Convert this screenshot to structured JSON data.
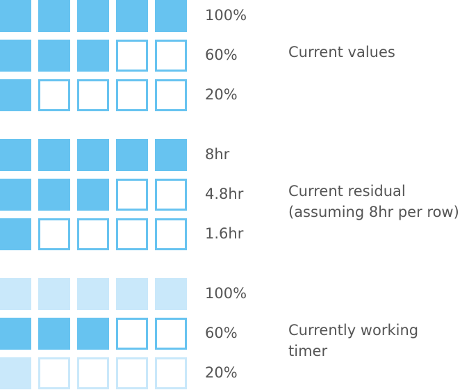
{
  "colors": {
    "fill": "#67c3f0",
    "fill_faded": "#c9e8fa",
    "text": "#555555"
  },
  "groups": [
    {
      "caption": [
        "Current values"
      ],
      "faded_inactive_rows": false,
      "rows": [
        {
          "label": "100%",
          "filled": 5,
          "total": 5
        },
        {
          "label": "60%",
          "filled": 3,
          "total": 5
        },
        {
          "label": "20%",
          "filled": 1,
          "total": 5
        }
      ]
    },
    {
      "caption": [
        "Current residual",
        "(assuming 8hr per row)"
      ],
      "faded_inactive_rows": false,
      "rows": [
        {
          "label": "8hr",
          "filled": 5,
          "total": 5
        },
        {
          "label": "4.8hr",
          "filled": 3,
          "total": 5
        },
        {
          "label": "1.6hr",
          "filled": 1,
          "total": 5
        }
      ]
    },
    {
      "caption": [
        "Currently working",
        "timer"
      ],
      "faded_inactive_rows": true,
      "active_row": 1,
      "rows": [
        {
          "label": "100%",
          "filled": 5,
          "total": 5
        },
        {
          "label": "60%",
          "filled": 3,
          "total": 5
        },
        {
          "label": "20%",
          "filled": 1,
          "total": 5
        }
      ]
    }
  ]
}
